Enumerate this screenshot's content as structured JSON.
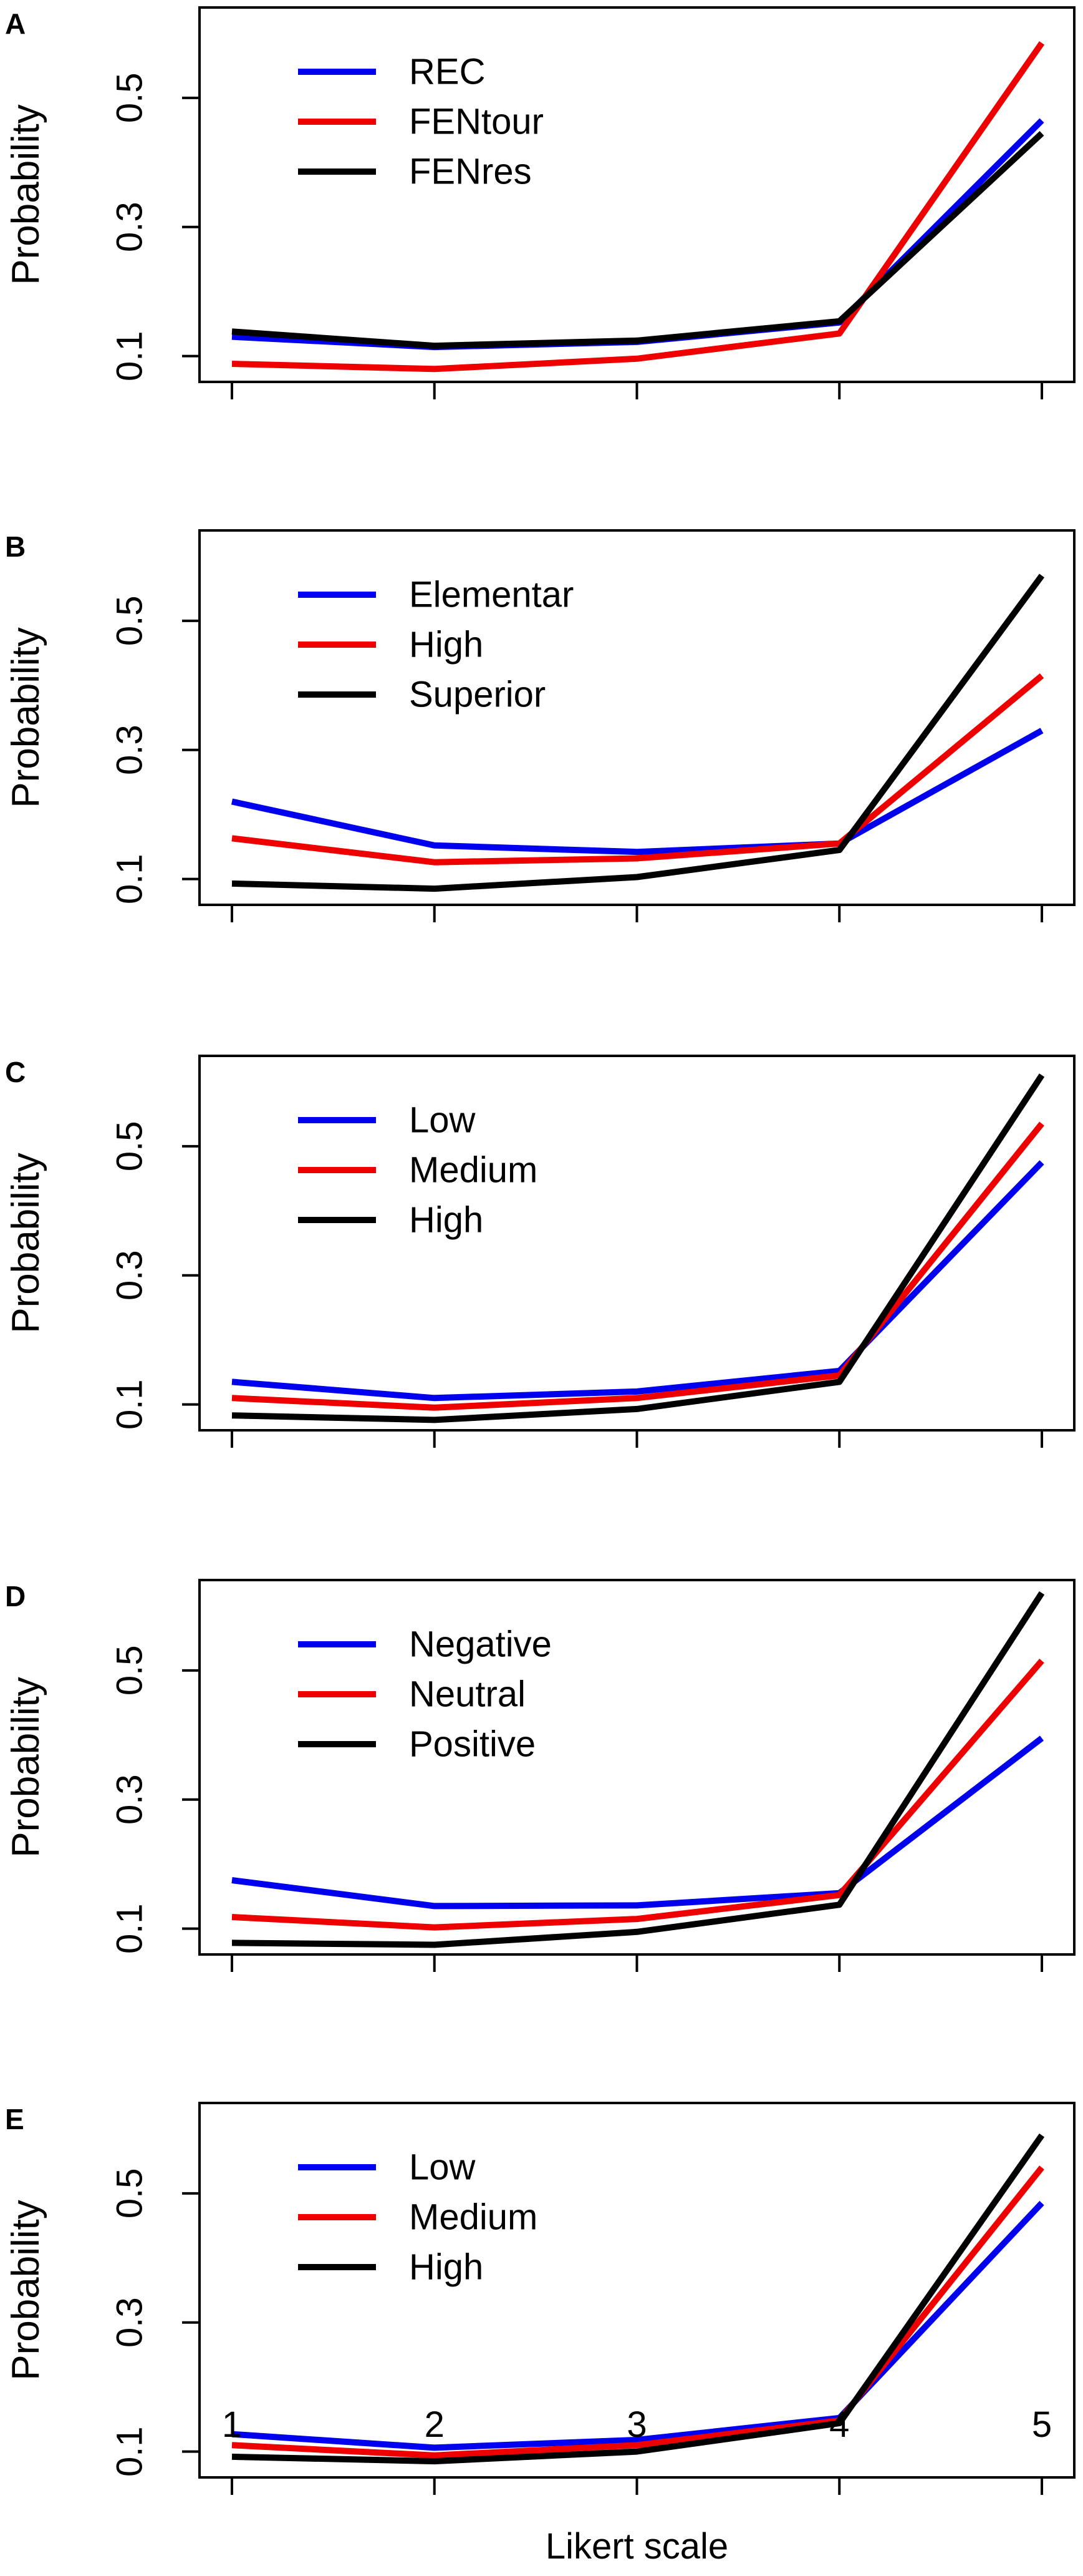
{
  "chart_data": [
    {
      "type": "line",
      "panel_label": "A",
      "ylabel": "Probability",
      "xlabel": "",
      "x": [
        1,
        2,
        3,
        4,
        5
      ],
      "ylim": [
        0.06,
        0.64
      ],
      "yticks": [
        0.1,
        0.3,
        0.5
      ],
      "ytick_labels": [
        "0.1",
        "0.3",
        "0.5"
      ],
      "legend_position": "top-left",
      "series": [
        {
          "name": "REC",
          "color": "#0000ee",
          "values": [
            0.13,
            0.114,
            0.122,
            0.152,
            0.465
          ]
        },
        {
          "name": "FENtour",
          "color": "#ee0000",
          "values": [
            0.088,
            0.08,
            0.096,
            0.135,
            0.585
          ]
        },
        {
          "name": "FENres",
          "color": "#000000",
          "values": [
            0.138,
            0.116,
            0.124,
            0.154,
            0.445
          ]
        }
      ]
    },
    {
      "type": "line",
      "panel_label": "B",
      "ylabel": "Probability",
      "xlabel": "",
      "x": [
        1,
        2,
        3,
        4,
        5
      ],
      "ylim": [
        0.06,
        0.64
      ],
      "yticks": [
        0.1,
        0.3,
        0.5
      ],
      "ytick_labels": [
        "0.1",
        "0.3",
        "0.5"
      ],
      "legend_position": "top-left",
      "series": [
        {
          "name": "Elementar",
          "color": "#0000ee",
          "values": [
            0.22,
            0.152,
            0.142,
            0.155,
            0.33
          ]
        },
        {
          "name": "High",
          "color": "#ee0000",
          "values": [
            0.163,
            0.126,
            0.132,
            0.155,
            0.415
          ]
        },
        {
          "name": "Superior",
          "color": "#000000",
          "values": [
            0.093,
            0.085,
            0.103,
            0.145,
            0.57
          ]
        }
      ]
    },
    {
      "type": "line",
      "panel_label": "C",
      "ylabel": "Probability",
      "xlabel": "",
      "x": [
        1,
        2,
        3,
        4,
        5
      ],
      "ylim": [
        0.06,
        0.64
      ],
      "yticks": [
        0.1,
        0.3,
        0.5
      ],
      "ytick_labels": [
        "0.1",
        "0.3",
        "0.5"
      ],
      "legend_position": "top-left",
      "series": [
        {
          "name": "Low",
          "color": "#0000ee",
          "values": [
            0.135,
            0.11,
            0.12,
            0.152,
            0.475
          ]
        },
        {
          "name": "Medium",
          "color": "#ee0000",
          "values": [
            0.11,
            0.095,
            0.11,
            0.145,
            0.535
          ]
        },
        {
          "name": "High",
          "color": "#000000",
          "values": [
            0.083,
            0.076,
            0.093,
            0.135,
            0.61
          ]
        }
      ]
    },
    {
      "type": "line",
      "panel_label": "D",
      "ylabel": "Probability",
      "xlabel": "",
      "x": [
        1,
        2,
        3,
        4,
        5
      ],
      "ylim": [
        0.06,
        0.64
      ],
      "yticks": [
        0.1,
        0.3,
        0.5
      ],
      "ytick_labels": [
        "0.1",
        "0.3",
        "0.5"
      ],
      "legend_position": "top-left",
      "series": [
        {
          "name": "Negative",
          "color": "#0000ee",
          "values": [
            0.175,
            0.135,
            0.136,
            0.155,
            0.395
          ]
        },
        {
          "name": "Neutral",
          "color": "#ee0000",
          "values": [
            0.118,
            0.102,
            0.115,
            0.152,
            0.515
          ]
        },
        {
          "name": "Positive",
          "color": "#000000",
          "values": [
            0.078,
            0.075,
            0.095,
            0.137,
            0.62
          ]
        }
      ]
    },
    {
      "type": "line",
      "panel_label": "E",
      "ylabel": "Probability",
      "xlabel": "Likert scale",
      "x": [
        1,
        2,
        3,
        4,
        5
      ],
      "xtick_labels": [
        "1",
        "2",
        "3",
        "4",
        "5"
      ],
      "ylim": [
        0.06,
        0.64
      ],
      "yticks": [
        0.1,
        0.3,
        0.5
      ],
      "ytick_labels": [
        "0.1",
        "0.3",
        "0.5"
      ],
      "legend_position": "top-left",
      "series": [
        {
          "name": "Low",
          "color": "#0000ee",
          "values": [
            0.127,
            0.106,
            0.118,
            0.152,
            0.485
          ]
        },
        {
          "name": "Medium",
          "color": "#ee0000",
          "values": [
            0.11,
            0.094,
            0.11,
            0.148,
            0.54
          ]
        },
        {
          "name": "High",
          "color": "#000000",
          "values": [
            0.092,
            0.085,
            0.1,
            0.144,
            0.59
          ]
        }
      ]
    }
  ]
}
